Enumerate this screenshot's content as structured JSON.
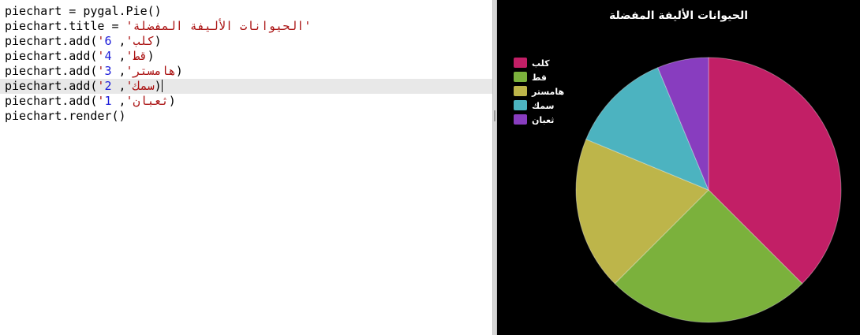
{
  "editor": {
    "lines": [
      {
        "parts": [
          {
            "t": "piechart = pygal.Pie()",
            "c": ""
          }
        ]
      },
      {
        "parts": [
          {
            "t": "piechart.title = ",
            "c": ""
          },
          {
            "t": "'الحيوانات الأليفة المفضلة'",
            "c": "tok-str"
          }
        ]
      },
      {
        "parts": [
          {
            "t": "piechart.add(",
            "c": ""
          },
          {
            "t": "'كلب'",
            "c": "tok-str"
          },
          {
            "t": ", ",
            "c": ""
          },
          {
            "t": "6",
            "c": "tok-num blue"
          },
          {
            "t": ")",
            "c": ""
          }
        ]
      },
      {
        "parts": [
          {
            "t": "piechart.add(",
            "c": ""
          },
          {
            "t": "'قط'",
            "c": "tok-str"
          },
          {
            "t": ", ",
            "c": ""
          },
          {
            "t": "4",
            "c": "tok-num blue"
          },
          {
            "t": ")",
            "c": ""
          }
        ]
      },
      {
        "parts": [
          {
            "t": "piechart.add(",
            "c": ""
          },
          {
            "t": "'هامستر'",
            "c": "tok-str"
          },
          {
            "t": ", ",
            "c": ""
          },
          {
            "t": "3",
            "c": "tok-num blue"
          },
          {
            "t": ")",
            "c": ""
          }
        ]
      },
      {
        "parts": [
          {
            "t": "piechart.add(",
            "c": ""
          },
          {
            "t": "'سمك'",
            "c": "tok-str"
          },
          {
            "t": ", ",
            "c": ""
          },
          {
            "t": "2",
            "c": "tok-num blue"
          },
          {
            "t": ")",
            "c": ""
          }
        ],
        "active": true
      },
      {
        "parts": [
          {
            "t": "piechart.add(",
            "c": ""
          },
          {
            "t": "'ثعبان'",
            "c": "tok-str"
          },
          {
            "t": ", ",
            "c": ""
          },
          {
            "t": "1",
            "c": "tok-num blue"
          },
          {
            "t": ")",
            "c": ""
          }
        ]
      },
      {
        "parts": [
          {
            "t": "piechart.render()",
            "c": ""
          }
        ]
      }
    ]
  },
  "chart_data": {
    "type": "pie",
    "title": "الحيوانات الأليفة المفضلة",
    "legend_position": "top-left",
    "background": "#000000",
    "series": [
      {
        "name": "كلب",
        "value": 6,
        "color": "#c21f66"
      },
      {
        "name": "قط",
        "value": 4,
        "color": "#7bb13c"
      },
      {
        "name": "هامستر",
        "value": 3,
        "color": "#bdb54a"
      },
      {
        "name": "سمك",
        "value": 2,
        "color": "#4cb3c0"
      },
      {
        "name": "ثعبان",
        "value": 1,
        "color": "#883dbf"
      }
    ]
  }
}
